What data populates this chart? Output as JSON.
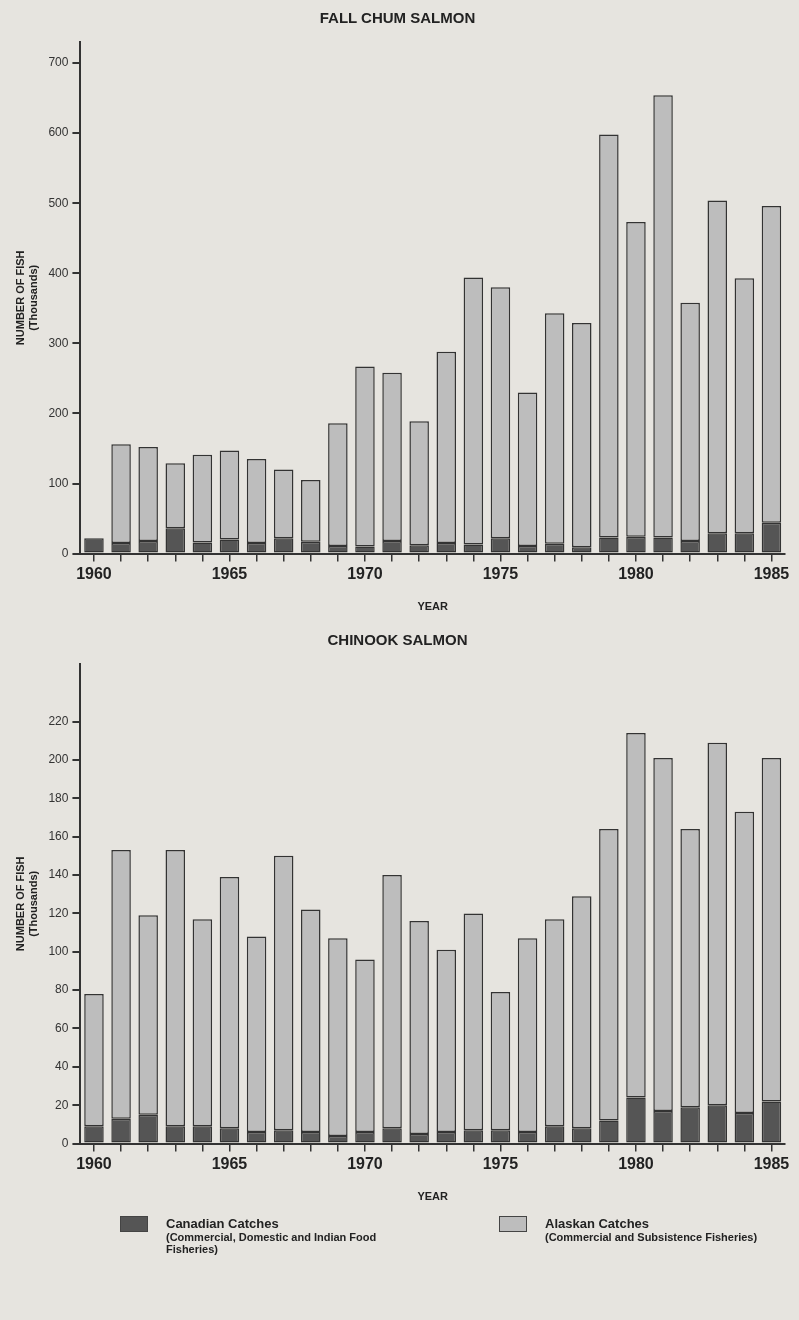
{
  "chart_data": [
    {
      "type": "bar",
      "title": "FALL CHUM SALMON",
      "xlabel": "YEAR",
      "ylabel": "NUMBER OF FISH (Thousands)",
      "stacked": true,
      "grid": false,
      "legend": false,
      "categories": [
        "1960",
        null,
        null,
        null,
        null,
        "1965",
        null,
        null,
        null,
        null,
        "1970",
        null,
        null,
        null,
        null,
        "1975",
        null,
        null,
        null,
        null,
        "1980",
        null,
        null,
        null,
        null,
        "1985"
      ],
      "ylim": [
        0,
        730
      ],
      "yticks": [
        0,
        100,
        200,
        300,
        400,
        500,
        600,
        700
      ],
      "series": [
        {
          "color": "#555555",
          "values": [
            22,
            15,
            18,
            36,
            16,
            20,
            15,
            22,
            17,
            11,
            10,
            18,
            12,
            15,
            13,
            22,
            11,
            14,
            9,
            23,
            24,
            23,
            18,
            29,
            29,
            44
          ]
        },
        {
          "color": "#bdbdbd",
          "values": [
            0,
            141,
            134,
            93,
            125,
            127,
            120,
            98,
            88,
            175,
            257,
            240,
            177,
            273,
            381,
            358,
            219,
            329,
            320,
            575,
            449,
            631,
            340,
            475,
            364,
            452
          ]
        }
      ]
    },
    {
      "type": "bar",
      "title": "CHINOOK SALMON",
      "xlabel": "YEAR",
      "ylabel": "NUMBER OF FISH (Thousands)",
      "stacked": true,
      "grid": false,
      "legend": "bottom",
      "categories": [
        "1960",
        null,
        null,
        null,
        null,
        "1965",
        null,
        null,
        null,
        null,
        "1970",
        null,
        null,
        null,
        null,
        "1975",
        null,
        null,
        null,
        null,
        "1980",
        null,
        null,
        null,
        null,
        "1985"
      ],
      "ylim": [
        0,
        250
      ],
      "yticks": [
        0,
        20,
        40,
        60,
        80,
        100,
        120,
        140,
        160,
        180,
        200,
        220
      ],
      "series": [
        {
          "name": "Canadian Catches (Commercial, Domestic and Indian Food Fisheries)",
          "color": "#555555",
          "values": [
            9,
            13,
            15,
            9,
            9,
            8,
            6,
            7,
            6,
            4,
            6,
            8,
            5,
            6,
            7,
            7,
            6,
            9,
            8,
            12,
            24,
            17,
            19,
            20,
            16,
            22
          ]
        },
        {
          "name": "Alaskan Catches (Commercial and Subsistence Fisheries)",
          "color": "#bdbdbd",
          "values": [
            69,
            140,
            104,
            144,
            108,
            131,
            102,
            143,
            116,
            103,
            90,
            132,
            111,
            95,
            113,
            72,
            101,
            108,
            121,
            152,
            190,
            184,
            145,
            189,
            157,
            179
          ]
        }
      ]
    }
  ]
}
